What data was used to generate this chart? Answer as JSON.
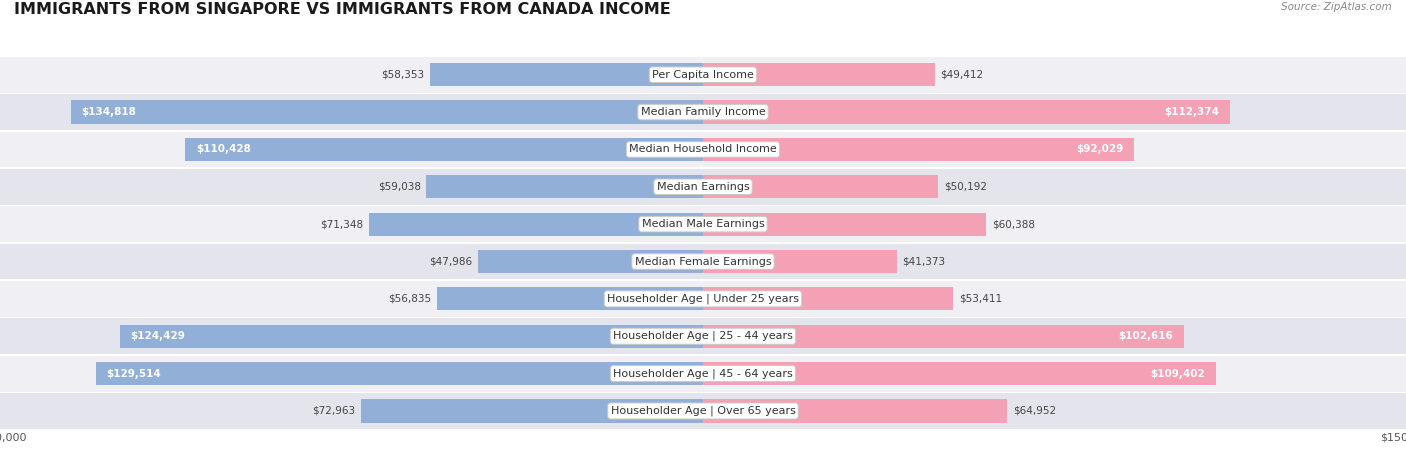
{
  "title": "IMMIGRANTS FROM SINGAPORE VS IMMIGRANTS FROM CANADA INCOME",
  "source": "Source: ZipAtlas.com",
  "categories": [
    "Per Capita Income",
    "Median Family Income",
    "Median Household Income",
    "Median Earnings",
    "Median Male Earnings",
    "Median Female Earnings",
    "Householder Age | Under 25 years",
    "Householder Age | 25 - 44 years",
    "Householder Age | 45 - 64 years",
    "Householder Age | Over 65 years"
  ],
  "singapore_values": [
    58353,
    134818,
    110428,
    59038,
    71348,
    47986,
    56835,
    124429,
    129514,
    72963
  ],
  "canada_values": [
    49412,
    112374,
    92029,
    50192,
    60388,
    41373,
    53411,
    102616,
    109402,
    64952
  ],
  "singapore_color": "#92afd7",
  "canada_color": "#f4a0b5",
  "singapore_label": "Immigrants from Singapore",
  "canada_label": "Immigrants from Canada",
  "max_value": 150000,
  "row_colors": [
    "#f0f0f4",
    "#e4e4ec"
  ],
  "title_fontsize": 11.5,
  "source_fontsize": 7.5,
  "label_fontsize": 8,
  "value_fontsize": 7.5,
  "axis_fontsize": 8,
  "bar_height": 0.62,
  "inside_threshold": 0.58
}
